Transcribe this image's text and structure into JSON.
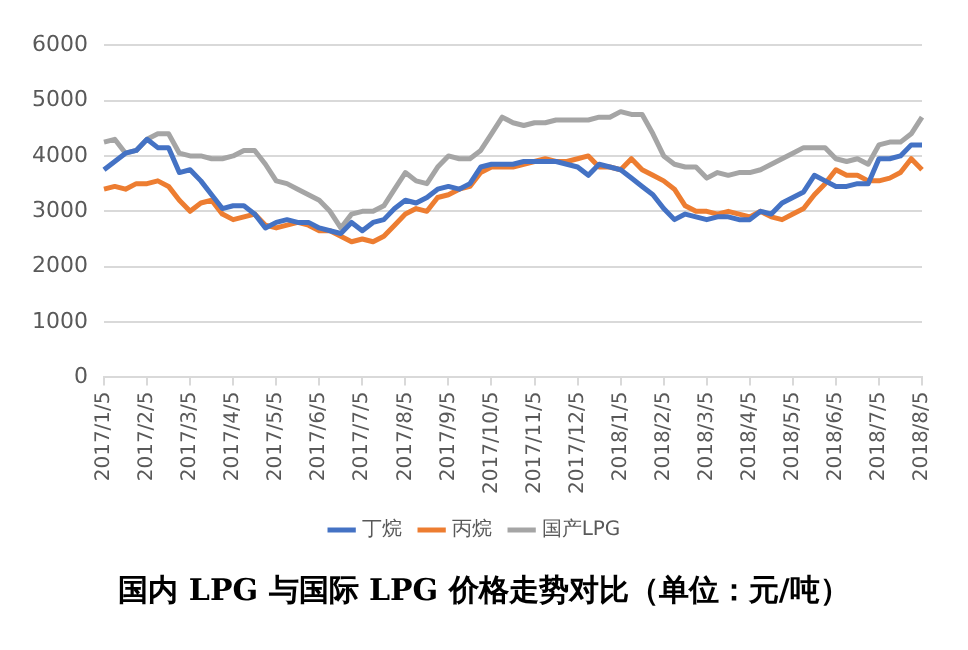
{
  "chart_data": {
    "type": "line",
    "title": "国内 LPG 与国际 LPG 价格走势对比（单位：元/吨）",
    "categories": [
      "2017/1/5",
      null,
      null,
      null,
      "2017/2/5",
      null,
      null,
      null,
      "2017/3/5",
      null,
      null,
      null,
      "2017/4/5",
      null,
      null,
      null,
      "2017/5/5",
      null,
      null,
      null,
      "2017/6/5",
      null,
      null,
      null,
      "2017/7/5",
      null,
      null,
      null,
      "2017/8/5",
      null,
      null,
      null,
      "2017/9/5",
      null,
      null,
      null,
      "2017/10/5",
      null,
      null,
      null,
      "2017/11/5",
      null,
      null,
      null,
      "2017/12/5",
      null,
      null,
      null,
      "2018/1/5",
      null,
      null,
      null,
      "2018/2/5",
      null,
      null,
      null,
      "2018/3/5",
      null,
      null,
      null,
      "2018/4/5",
      null,
      null,
      null,
      "2018/5/5",
      null,
      null,
      null,
      "2018/6/5",
      null,
      null,
      null,
      "2018/7/5",
      null,
      null,
      null,
      "2018/8/5"
    ],
    "series": [
      {
        "name": "丁烷",
        "color": "#4472c4",
        "values": [
          3750,
          3900,
          4050,
          4100,
          4300,
          4150,
          4150,
          3700,
          3750,
          3550,
          3300,
          3050,
          3100,
          3100,
          2950,
          2700,
          2800,
          2850,
          2800,
          2800,
          2700,
          2650,
          2600,
          2800,
          2650,
          2800,
          2850,
          3050,
          3200,
          3150,
          3250,
          3400,
          3450,
          3400,
          3500,
          3800,
          3850,
          3850,
          3850,
          3900,
          3900,
          3900,
          3900,
          3850,
          3800,
          3650,
          3850,
          3800,
          3750,
          3600,
          3450,
          3300,
          3050,
          2850,
          2950,
          2900,
          2850,
          2900,
          2900,
          2850,
          2850,
          3000,
          2950,
          3150,
          3250,
          3350,
          3650,
          3550,
          3450,
          3450,
          3500,
          3500,
          3950,
          3950,
          4000,
          4200,
          4200
        ]
      },
      {
        "name": "丙烷",
        "color": "#ed7d31",
        "values": [
          3400,
          3450,
          3400,
          3500,
          3500,
          3550,
          3450,
          3200,
          3000,
          3150,
          3200,
          2950,
          2850,
          2900,
          2950,
          2750,
          2700,
          2750,
          2800,
          2750,
          2650,
          2650,
          2550,
          2450,
          2500,
          2450,
          2550,
          2750,
          2950,
          3050,
          3000,
          3250,
          3300,
          3400,
          3450,
          3700,
          3800,
          3800,
          3800,
          3850,
          3900,
          3950,
          3900,
          3900,
          3950,
          4000,
          3800,
          3800,
          3750,
          3950,
          3750,
          3650,
          3550,
          3400,
          3100,
          3000,
          3000,
          2950,
          3000,
          2950,
          2900,
          3000,
          2900,
          2850,
          2950,
          3050,
          3300,
          3500,
          3750,
          3650,
          3650,
          3550,
          3550,
          3600,
          3700,
          3950,
          3750
        ]
      },
      {
        "name": "国产LPG",
        "color": "#a5a5a5",
        "values": [
          4250,
          4300,
          4050,
          4100,
          4300,
          4400,
          4400,
          4050,
          4000,
          4000,
          3950,
          3950,
          4000,
          4100,
          4100,
          3850,
          3550,
          3500,
          3400,
          3300,
          3200,
          3000,
          2700,
          2950,
          3000,
          3000,
          3100,
          3400,
          3700,
          3550,
          3500,
          3800,
          4000,
          3950,
          3950,
          4100,
          4400,
          4700,
          4600,
          4550,
          4600,
          4600,
          4650,
          4650,
          4650,
          4650,
          4700,
          4700,
          4800,
          4750,
          4750,
          4400,
          4000,
          3850,
          3800,
          3800,
          3600,
          3700,
          3650,
          3700,
          3700,
          3750,
          3850,
          3950,
          4050,
          4150,
          4150,
          4150,
          3950,
          3900,
          3950,
          3850,
          4200,
          4250,
          4250,
          4400,
          4700
        ]
      }
    ],
    "ylim": [
      0,
      6000
    ],
    "yticks": [
      0,
      1000,
      2000,
      3000,
      4000,
      5000,
      6000
    ],
    "grid": "y",
    "legend": "bottom",
    "marker": "none",
    "line_style": "solid"
  }
}
